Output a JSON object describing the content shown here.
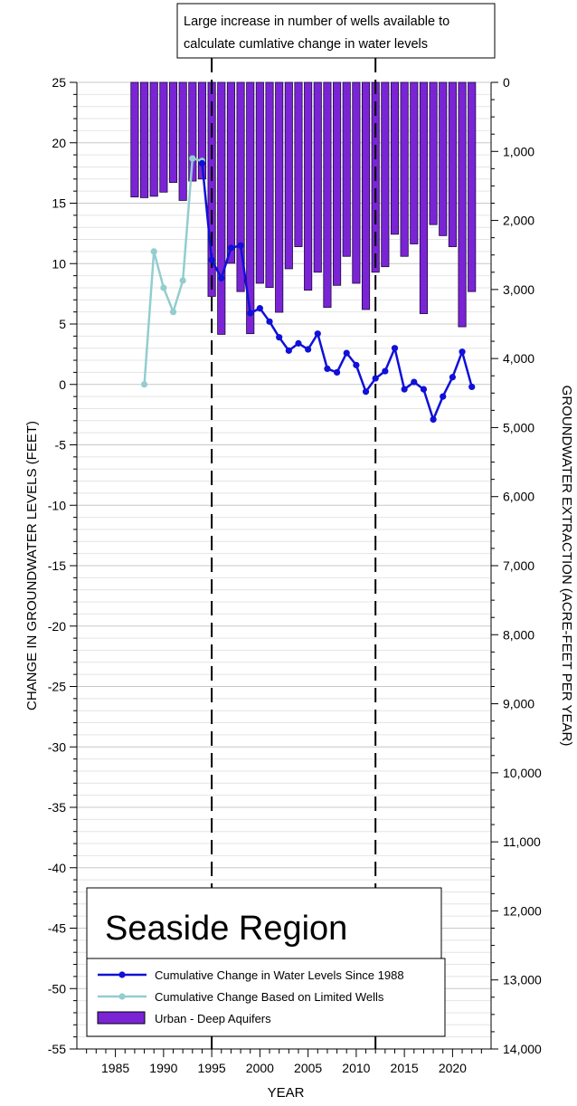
{
  "annotation": {
    "line1": "Large increase in number of wells available to",
    "line2": "calculate cumlative change in water levels"
  },
  "legend": {
    "title": "Seaside Region",
    "items": [
      {
        "label": "Cumulative Change in Water Levels Since 1988",
        "color": "#1010d8",
        "kind": "line"
      },
      {
        "label": "Cumulative Change Based on Limited Wells",
        "color": "#93cdd0",
        "kind": "line"
      },
      {
        "label": "Urban - Deep Aquifers",
        "color": "#7b24d6",
        "kind": "bar"
      }
    ]
  },
  "chart_data": {
    "type": "bar",
    "title": "",
    "xlabel": "YEAR",
    "ylabel": "CHANGE IN GROUNDWATER LEVELS (FEET)",
    "y2label": "GROUNDWATER EXTRACTION (ACRE-FEET PER YEAR)",
    "xlim": [
      1981,
      2024
    ],
    "ylim": [
      -55,
      25
    ],
    "y2lim": [
      0,
      14000
    ],
    "y2_inverted": true,
    "grid": true,
    "x_ticks": [
      1985,
      1990,
      1995,
      2000,
      2005,
      2010,
      2015,
      2020
    ],
    "y_ticks": [
      25,
      20,
      15,
      10,
      5,
      0,
      -5,
      -10,
      -15,
      -20,
      -25,
      -30,
      -35,
      -40,
      -45,
      -50,
      -55
    ],
    "y2_ticks": [
      "0",
      "1,000",
      "2,000",
      "3,000",
      "4,000",
      "5,000",
      "6,000",
      "7,000",
      "8,000",
      "9,000",
      "10,000",
      "11,000",
      "12,000",
      "13,000",
      "14,000"
    ],
    "y2_tick_values": [
      0,
      1000,
      2000,
      3000,
      4000,
      5000,
      6000,
      7000,
      8000,
      9000,
      10000,
      11000,
      12000,
      13000,
      14000
    ],
    "vertical_lines": [
      1995,
      2012
    ],
    "series": [
      {
        "name": "Urban - Deep Aquifers",
        "type": "bar",
        "axis": "y2",
        "x": [
          1987,
          1988,
          1989,
          1990,
          1991,
          1992,
          1993,
          1994,
          1995,
          1996,
          1997,
          1998,
          1999,
          2000,
          2001,
          2002,
          2003,
          2004,
          2005,
          2006,
          2007,
          2008,
          2009,
          2010,
          2011,
          2012,
          2013,
          2014,
          2015,
          2016,
          2017,
          2018,
          2019,
          2020,
          2021,
          2022
        ],
        "values": [
          1660,
          1670,
          1650,
          1590,
          1450,
          1710,
          1430,
          1400,
          3100,
          3650,
          2620,
          3030,
          3640,
          2910,
          2970,
          3330,
          2700,
          2380,
          3010,
          2750,
          3260,
          2940,
          2520,
          2910,
          3290,
          2750,
          2670,
          2200,
          2520,
          2340,
          3350,
          2060,
          2220,
          2380,
          3540,
          3030
        ]
      },
      {
        "name": "Cumulative Change in Water Levels Since 1988",
        "type": "line",
        "axis": "y",
        "x": [
          1994,
          1995,
          1996,
          1997,
          1998,
          1999,
          2000,
          2001,
          2002,
          2003,
          2004,
          2005,
          2006,
          2007,
          2008,
          2009,
          2010,
          2011,
          2012,
          2013,
          2014,
          2015,
          2016,
          2017,
          2018,
          2019,
          2020,
          2021,
          2022
        ],
        "values": [
          18.3,
          10.3,
          8.8,
          11.3,
          11.5,
          5.9,
          6.3,
          5.2,
          3.9,
          2.8,
          3.4,
          2.9,
          4.2,
          1.3,
          1.0,
          2.6,
          1.6,
          -0.6,
          0.5,
          1.1,
          3.0,
          -0.4,
          0.2,
          -0.4,
          -2.9,
          -1.0,
          0.6,
          2.7,
          -0.2
        ]
      },
      {
        "name": "Cumulative Change Based on Limited Wells",
        "type": "line",
        "axis": "y",
        "x": [
          1988,
          1989,
          1990,
          1991,
          1992,
          1993,
          1994
        ],
        "values": [
          0.0,
          11.0,
          8.0,
          6.0,
          8.6,
          18.7,
          18.5
        ]
      }
    ]
  }
}
